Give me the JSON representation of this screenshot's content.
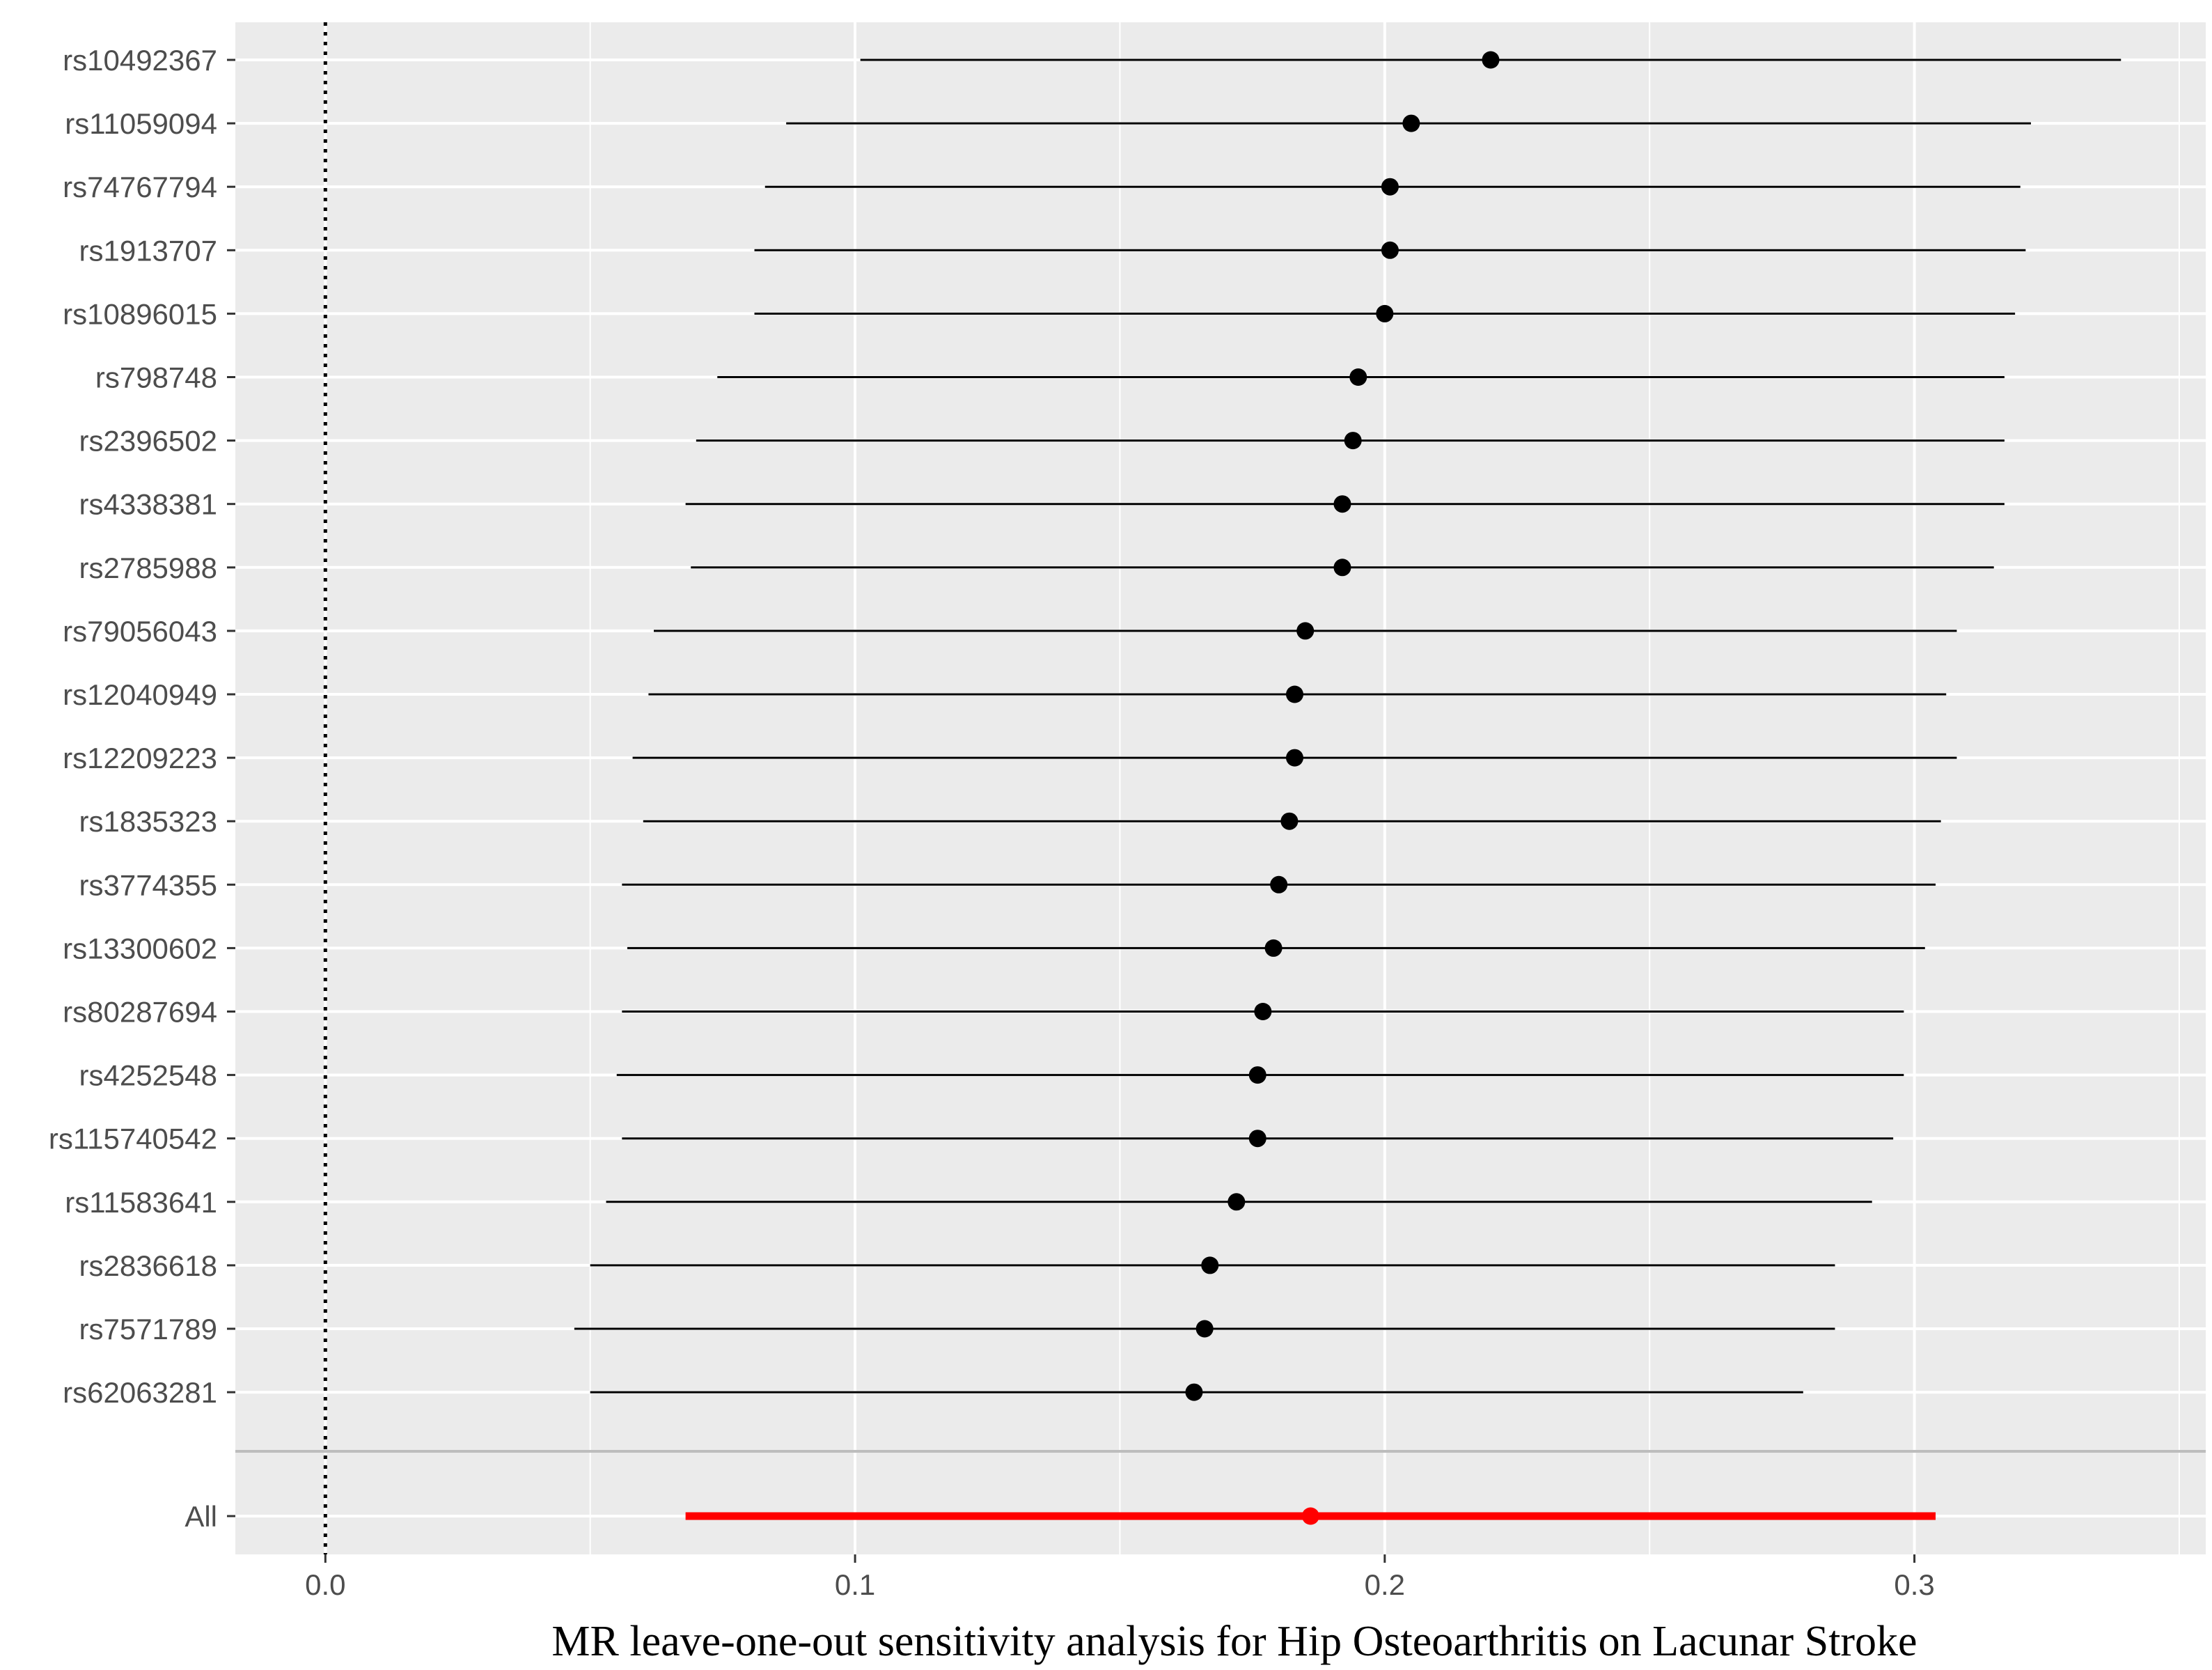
{
  "chart_data": {
    "type": "forest",
    "title": "",
    "xlabel": "MR leave-one-out sensitivity analysis for Hip Osteoarthritis on Lacunar Stroke",
    "ylabel": "",
    "xlim": [
      -0.017,
      0.355
    ],
    "x_ticks": [
      0.0,
      0.1,
      0.2,
      0.3
    ],
    "x_tick_labels": [
      "0.0",
      "0.1",
      "0.2",
      "0.3"
    ],
    "reference_line_x": 0,
    "grid": true,
    "colors": {
      "panel_background": "#ebebeb",
      "grid": "#ffffff",
      "snp_series": "#000000",
      "overall_series": "#ff0000",
      "separator": "#bdbdbd"
    },
    "series": [
      {
        "name": "",
        "label": "rs10492367",
        "estimate": 0.22,
        "lower": 0.101,
        "upper": 0.339
      },
      {
        "name": "",
        "label": "rs11059094",
        "estimate": 0.205,
        "lower": 0.087,
        "upper": 0.322
      },
      {
        "name": "",
        "label": "rs74767794",
        "estimate": 0.201,
        "lower": 0.083,
        "upper": 0.32
      },
      {
        "name": "",
        "label": "rs1913707",
        "estimate": 0.201,
        "lower": 0.081,
        "upper": 0.321
      },
      {
        "name": "",
        "label": "rs10896015",
        "estimate": 0.2,
        "lower": 0.081,
        "upper": 0.319
      },
      {
        "name": "",
        "label": "rs798748",
        "estimate": 0.195,
        "lower": 0.074,
        "upper": 0.317
      },
      {
        "name": "",
        "label": "rs2396502",
        "estimate": 0.194,
        "lower": 0.07,
        "upper": 0.317
      },
      {
        "name": "",
        "label": "rs4338381",
        "estimate": 0.192,
        "lower": 0.068,
        "upper": 0.317
      },
      {
        "name": "",
        "label": "rs2785988",
        "estimate": 0.192,
        "lower": 0.069,
        "upper": 0.315
      },
      {
        "name": "",
        "label": "rs79056043",
        "estimate": 0.185,
        "lower": 0.062,
        "upper": 0.308
      },
      {
        "name": "",
        "label": "rs12040949",
        "estimate": 0.183,
        "lower": 0.061,
        "upper": 0.306
      },
      {
        "name": "",
        "label": "rs12209223",
        "estimate": 0.183,
        "lower": 0.058,
        "upper": 0.308
      },
      {
        "name": "",
        "label": "rs1835323",
        "estimate": 0.182,
        "lower": 0.06,
        "upper": 0.305
      },
      {
        "name": "",
        "label": "rs3774355",
        "estimate": 0.18,
        "lower": 0.056,
        "upper": 0.304
      },
      {
        "name": "",
        "label": "rs13300602",
        "estimate": 0.179,
        "lower": 0.057,
        "upper": 0.302
      },
      {
        "name": "",
        "label": "rs80287694",
        "estimate": 0.177,
        "lower": 0.056,
        "upper": 0.298
      },
      {
        "name": "",
        "label": "rs4252548",
        "estimate": 0.176,
        "lower": 0.055,
        "upper": 0.298
      },
      {
        "name": "",
        "label": "rs115740542",
        "estimate": 0.176,
        "lower": 0.056,
        "upper": 0.296
      },
      {
        "name": "",
        "label": "rs11583641",
        "estimate": 0.172,
        "lower": 0.053,
        "upper": 0.292
      },
      {
        "name": "",
        "label": "rs2836618",
        "estimate": 0.167,
        "lower": 0.05,
        "upper": 0.285
      },
      {
        "name": "",
        "label": "rs7571789",
        "estimate": 0.166,
        "lower": 0.047,
        "upper": 0.285
      },
      {
        "name": "",
        "label": "rs62063281",
        "estimate": 0.164,
        "lower": 0.05,
        "upper": 0.279
      }
    ],
    "overall": {
      "label": "All",
      "estimate": 0.186,
      "lower": 0.068,
      "upper": 0.304
    }
  }
}
